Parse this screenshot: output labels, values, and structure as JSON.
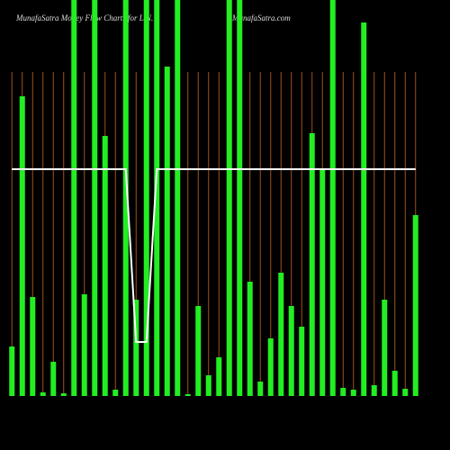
{
  "chart_data": {
    "type": "bar",
    "title": "MunafaSatra Money Flow Charts for L.N.",
    "subtitle": "MunafaSatra.com",
    "categories": [
      null,
      null,
      null,
      null,
      null,
      null,
      null,
      null,
      null,
      null,
      null,
      null,
      null,
      null,
      null,
      null,
      null,
      null,
      null,
      null,
      null,
      null,
      null,
      null,
      null,
      null,
      null,
      null,
      null,
      null,
      null,
      null,
      null,
      null,
      null,
      null,
      null,
      null,
      null,
      null
    ],
    "series": [
      {
        "type": "bar",
        "color": "#22ee22",
        "values": [
          55,
          333,
          110,
          4,
          38,
          3,
          440,
          113,
          440,
          289,
          7,
          440,
          107,
          440,
          440,
          366,
          440,
          2,
          100,
          23,
          43,
          440,
          440,
          127,
          16,
          64,
          137,
          100,
          77,
          292,
          252,
          440,
          9,
          7,
          415,
          12,
          107,
          28,
          8,
          201
        ]
      },
      {
        "type": "line",
        "color": "#ffffff",
        "values": [
          252,
          252,
          252,
          252,
          252,
          252,
          252,
          252,
          252,
          252,
          252,
          252,
          60,
          60,
          252,
          252,
          252,
          252,
          252,
          252,
          252,
          252,
          252,
          252,
          252,
          252,
          252,
          252,
          252,
          252,
          252,
          252,
          252,
          252,
          252,
          252,
          252,
          252,
          252,
          252
        ]
      }
    ],
    "ylim": [
      0,
      440
    ],
    "grid_color": "#a0521e"
  }
}
